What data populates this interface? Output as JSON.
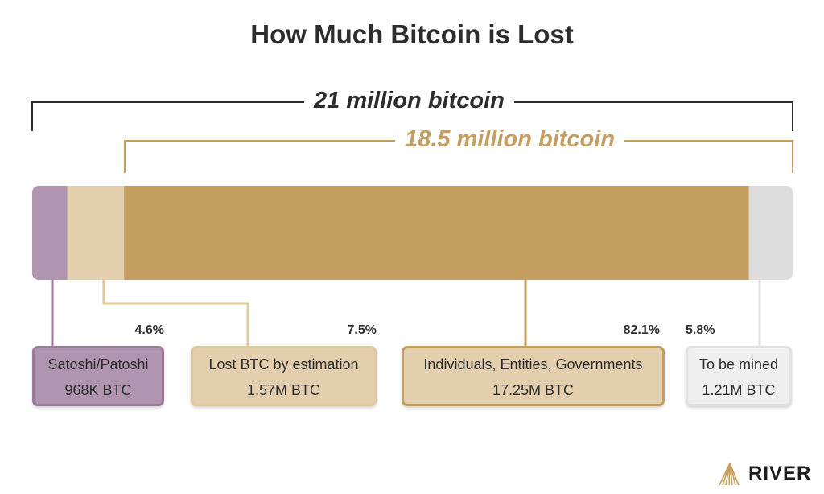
{
  "chart_data": {
    "type": "bar",
    "orientation": "horizontal-stacked",
    "title": "How Much Bitcoin is Lost",
    "total_label": "21 million bitcoin",
    "circulating_label": "18.5 million bitcoin",
    "unit": "BTC",
    "total_million": 21,
    "segments": [
      {
        "name": "Satoshi/Patoshi",
        "value_label": "968K BTC",
        "value_million": 0.968,
        "percent": "4.6%",
        "color": "#b095b0",
        "border": "#9b7a9c"
      },
      {
        "name": "Lost BTC by estimation",
        "value_label": "1.57M BTC",
        "value_million": 1.57,
        "percent": "7.5%",
        "color": "#e3cfae",
        "border": "#e0c89f"
      },
      {
        "name": "Individuals, Entities, Governments",
        "value_label": "17.25M BTC",
        "value_million": 17.25,
        "percent": "82.1%",
        "color": "#c49e5e",
        "border": "#c49e5e",
        "box_fill": "#e3cfae"
      },
      {
        "name": "To be mined",
        "value_label": "1.21M BTC",
        "value_million": 1.21,
        "percent": "5.8%",
        "color": "#dcdcdc",
        "border": "#e0e0e0",
        "box_fill": "#efefef"
      }
    ]
  },
  "brand": {
    "name": "RIVER",
    "color": "#c49e5e"
  }
}
